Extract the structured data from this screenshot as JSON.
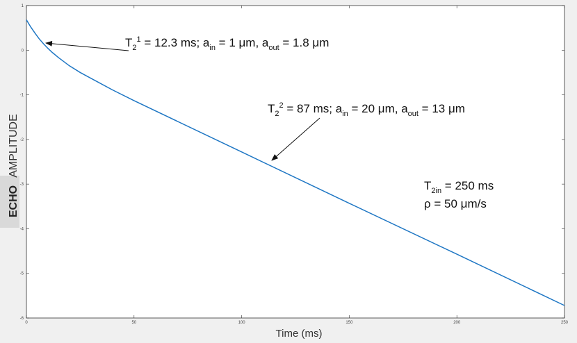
{
  "chart_data": {
    "type": "line",
    "xlabel": "Time (ms)",
    "ylabel": [
      "ECHO",
      "AMPLITUDE"
    ],
    "x": [
      0,
      2,
      4,
      6,
      8,
      10,
      12,
      15,
      20,
      25,
      30,
      40,
      50,
      100,
      150,
      200,
      250
    ],
    "values": [
      0.68,
      0.52,
      0.38,
      0.25,
      0.14,
      0.04,
      -0.05,
      -0.17,
      -0.35,
      -0.5,
      -0.63,
      -0.89,
      -1.13,
      -2.28,
      -3.43,
      -4.57,
      -5.72
    ],
    "color": "#1f77c4",
    "xlim": [
      0,
      250
    ],
    "xticks": [
      0,
      50,
      100,
      150,
      200,
      250
    ],
    "ylim": [
      -6,
      1
    ],
    "yticks": [
      -6,
      -5,
      -4,
      -3,
      -2,
      -1,
      0,
      1
    ],
    "annotations": [
      {
        "parts": [
          {
            "text": "T"
          },
          {
            "text": "2",
            "script": "sub"
          },
          {
            "text": "1",
            "script": "sup"
          },
          {
            "text": " = 12.3 ms; a"
          },
          {
            "text": "in",
            "script": "sub"
          },
          {
            "text": " = 1 μm, a"
          },
          {
            "text": "out",
            "script": "sub"
          },
          {
            "text": " = 1.8 μm"
          }
        ]
      },
      {
        "parts": [
          {
            "text": "T"
          },
          {
            "text": "2",
            "script": "sub"
          },
          {
            "text": "2",
            "script": "sup"
          },
          {
            "text": " = 87 ms; a"
          },
          {
            "text": "in",
            "script": "sub"
          },
          {
            "text": " = 20 μm, a"
          },
          {
            "text": "out",
            "script": "sub"
          },
          {
            "text": " = 13 μm"
          }
        ]
      },
      {
        "parts": [
          {
            "text": "T"
          },
          {
            "text": "2in",
            "script": "sub"
          },
          {
            "text": " = 250 ms"
          }
        ]
      },
      {
        "parts": [
          {
            "text": "ρ = 50 μm/s"
          }
        ]
      }
    ]
  }
}
